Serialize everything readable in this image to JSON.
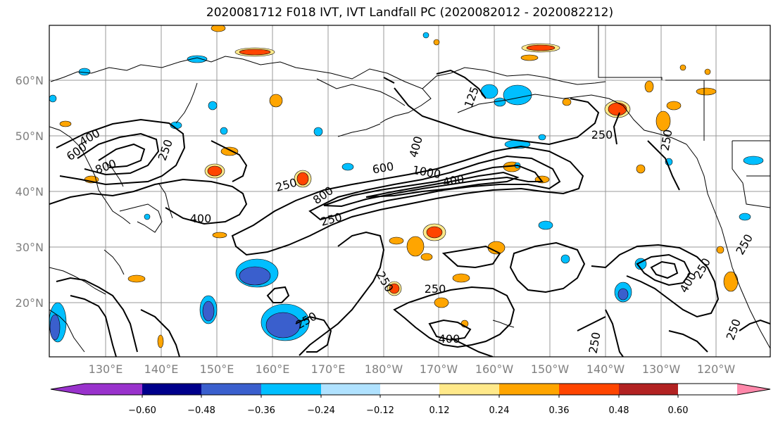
{
  "title": "2020081712 F018 IVT, IVT Landfall PC (2020082012 - 2020082212)",
  "lat_labels": [
    "60°N",
    "50°N",
    "40°N",
    "30°N",
    "20°N"
  ],
  "lon_labels": [
    "130°E",
    "140°E",
    "150°E",
    "160°E",
    "170°E",
    "180°W",
    "170°W",
    "160°W",
    "150°W",
    "140°W",
    "130°W",
    "120°W"
  ],
  "colorbar": {
    "ticks": [
      "−0.60",
      "−0.48",
      "−0.36",
      "−0.24",
      "−0.12",
      "0.12",
      "0.24",
      "0.36",
      "0.48",
      "0.60"
    ],
    "colors": [
      "#9932cc",
      "#00008b",
      "#3a5fcd",
      "#00bfff",
      "#b0e2ff",
      "#ffffff",
      "#ffe98a",
      "#ffa500",
      "#ff4500",
      "#b22222",
      "#ff88aa"
    ]
  },
  "contour_labels": [
    "400",
    "600",
    "800",
    "250",
    "250",
    "400",
    "800",
    "600",
    "1000",
    "400",
    "400",
    "250",
    "125",
    "250",
    "250",
    "250",
    "400",
    "250",
    "400",
    "250",
    "250",
    "250",
    "250",
    "250"
  ]
}
